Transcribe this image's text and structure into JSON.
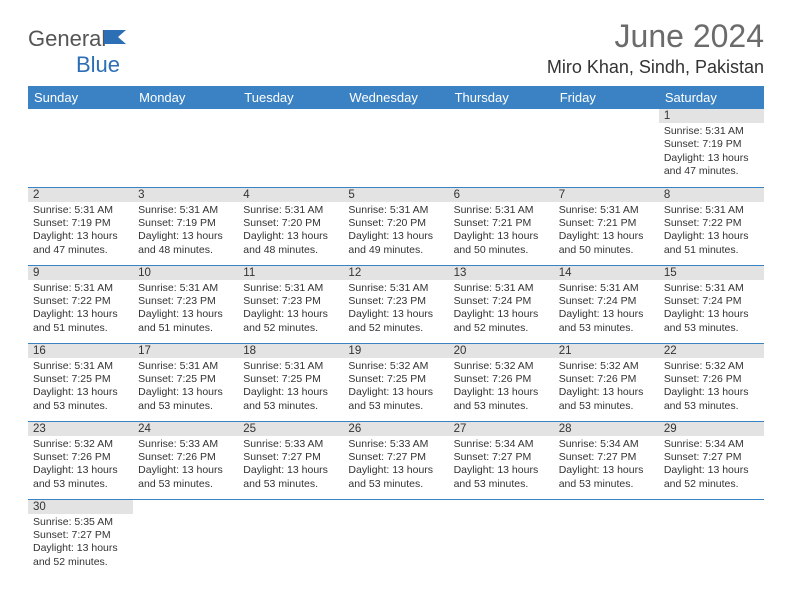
{
  "logo": {
    "textDark": "General",
    "textBlue": "Blue"
  },
  "header": {
    "monthTitle": "June 2024",
    "location": "Miro Khan, Sindh, Pakistan"
  },
  "colors": {
    "headerBg": "#3b82c4",
    "headerText": "#ffffff",
    "dayNumBg": "#e3e3e3",
    "borderColor": "#3b82c4",
    "logoBlue": "#2d6fb5",
    "titleGray": "#6b6b6b"
  },
  "weekdays": [
    "Sunday",
    "Monday",
    "Tuesday",
    "Wednesday",
    "Thursday",
    "Friday",
    "Saturday"
  ],
  "startOffset": 6,
  "days": [
    {
      "n": "1",
      "sunrise": "5:31 AM",
      "sunset": "7:19 PM",
      "daylight": "13 hours and 47 minutes."
    },
    {
      "n": "2",
      "sunrise": "5:31 AM",
      "sunset": "7:19 PM",
      "daylight": "13 hours and 47 minutes."
    },
    {
      "n": "3",
      "sunrise": "5:31 AM",
      "sunset": "7:19 PM",
      "daylight": "13 hours and 48 minutes."
    },
    {
      "n": "4",
      "sunrise": "5:31 AM",
      "sunset": "7:20 PM",
      "daylight": "13 hours and 48 minutes."
    },
    {
      "n": "5",
      "sunrise": "5:31 AM",
      "sunset": "7:20 PM",
      "daylight": "13 hours and 49 minutes."
    },
    {
      "n": "6",
      "sunrise": "5:31 AM",
      "sunset": "7:21 PM",
      "daylight": "13 hours and 50 minutes."
    },
    {
      "n": "7",
      "sunrise": "5:31 AM",
      "sunset": "7:21 PM",
      "daylight": "13 hours and 50 minutes."
    },
    {
      "n": "8",
      "sunrise": "5:31 AM",
      "sunset": "7:22 PM",
      "daylight": "13 hours and 51 minutes."
    },
    {
      "n": "9",
      "sunrise": "5:31 AM",
      "sunset": "7:22 PM",
      "daylight": "13 hours and 51 minutes."
    },
    {
      "n": "10",
      "sunrise": "5:31 AM",
      "sunset": "7:23 PM",
      "daylight": "13 hours and 51 minutes."
    },
    {
      "n": "11",
      "sunrise": "5:31 AM",
      "sunset": "7:23 PM",
      "daylight": "13 hours and 52 minutes."
    },
    {
      "n": "12",
      "sunrise": "5:31 AM",
      "sunset": "7:23 PM",
      "daylight": "13 hours and 52 minutes."
    },
    {
      "n": "13",
      "sunrise": "5:31 AM",
      "sunset": "7:24 PM",
      "daylight": "13 hours and 52 minutes."
    },
    {
      "n": "14",
      "sunrise": "5:31 AM",
      "sunset": "7:24 PM",
      "daylight": "13 hours and 53 minutes."
    },
    {
      "n": "15",
      "sunrise": "5:31 AM",
      "sunset": "7:24 PM",
      "daylight": "13 hours and 53 minutes."
    },
    {
      "n": "16",
      "sunrise": "5:31 AM",
      "sunset": "7:25 PM",
      "daylight": "13 hours and 53 minutes."
    },
    {
      "n": "17",
      "sunrise": "5:31 AM",
      "sunset": "7:25 PM",
      "daylight": "13 hours and 53 minutes."
    },
    {
      "n": "18",
      "sunrise": "5:31 AM",
      "sunset": "7:25 PM",
      "daylight": "13 hours and 53 minutes."
    },
    {
      "n": "19",
      "sunrise": "5:32 AM",
      "sunset": "7:25 PM",
      "daylight": "13 hours and 53 minutes."
    },
    {
      "n": "20",
      "sunrise": "5:32 AM",
      "sunset": "7:26 PM",
      "daylight": "13 hours and 53 minutes."
    },
    {
      "n": "21",
      "sunrise": "5:32 AM",
      "sunset": "7:26 PM",
      "daylight": "13 hours and 53 minutes."
    },
    {
      "n": "22",
      "sunrise": "5:32 AM",
      "sunset": "7:26 PM",
      "daylight": "13 hours and 53 minutes."
    },
    {
      "n": "23",
      "sunrise": "5:32 AM",
      "sunset": "7:26 PM",
      "daylight": "13 hours and 53 minutes."
    },
    {
      "n": "24",
      "sunrise": "5:33 AM",
      "sunset": "7:26 PM",
      "daylight": "13 hours and 53 minutes."
    },
    {
      "n": "25",
      "sunrise": "5:33 AM",
      "sunset": "7:27 PM",
      "daylight": "13 hours and 53 minutes."
    },
    {
      "n": "26",
      "sunrise": "5:33 AM",
      "sunset": "7:27 PM",
      "daylight": "13 hours and 53 minutes."
    },
    {
      "n": "27",
      "sunrise": "5:34 AM",
      "sunset": "7:27 PM",
      "daylight": "13 hours and 53 minutes."
    },
    {
      "n": "28",
      "sunrise": "5:34 AM",
      "sunset": "7:27 PM",
      "daylight": "13 hours and 53 minutes."
    },
    {
      "n": "29",
      "sunrise": "5:34 AM",
      "sunset": "7:27 PM",
      "daylight": "13 hours and 52 minutes."
    },
    {
      "n": "30",
      "sunrise": "5:35 AM",
      "sunset": "7:27 PM",
      "daylight": "13 hours and 52 minutes."
    }
  ],
  "labels": {
    "sunrise": "Sunrise: ",
    "sunset": "Sunset: ",
    "daylight": "Daylight: "
  }
}
